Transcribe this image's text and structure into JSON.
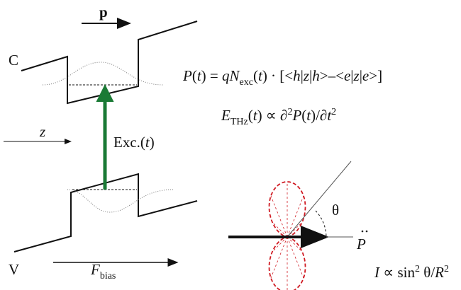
{
  "labels": {
    "momentum": "p",
    "conduction": "C",
    "valence": "V",
    "z_axis": "z",
    "excitation": [
      "Exc.(",
      "t",
      ")"
    ],
    "bias_field": [
      "F",
      "bias"
    ],
    "angle": "θ",
    "dipole": "P",
    "intensity": [
      "I",
      " ∝ sin",
      "2",
      " θ/",
      "R",
      "2"
    ]
  },
  "equations": [
    [
      "P",
      "(",
      "t",
      ") = ",
      "qN",
      "exc",
      "(",
      "t",
      ") · [<",
      "h",
      "|",
      "z",
      "|",
      "h",
      ">–<",
      "e",
      "|",
      "z",
      "|",
      "e",
      ">]"
    ],
    [
      "E",
      "THz",
      "(",
      "t",
      ") ∝ ∂",
      "2",
      "P",
      "(",
      "t",
      ")/∂",
      "t",
      "2"
    ]
  ]
}
